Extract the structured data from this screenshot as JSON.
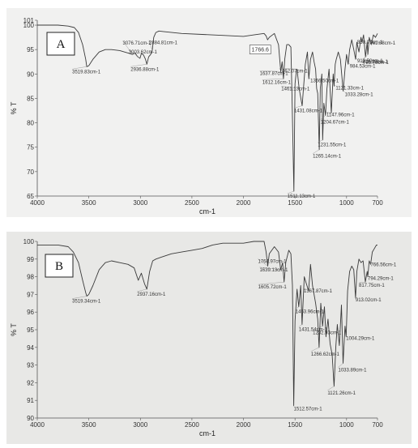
{
  "chart_data": [
    {
      "type": "line",
      "panel_label": "A",
      "xlabel": "cm-1",
      "ylabel": "% T",
      "xlim": [
        4000,
        700
      ],
      "ylim": [
        65,
        101
      ],
      "x_ticks": [
        4000,
        3500,
        3000,
        2500,
        2000,
        1500,
        1000,
        700
      ],
      "y_ticks": [
        101,
        100,
        95,
        90,
        85,
        80,
        75,
        70,
        65
      ],
      "boxed_label": "1766.6",
      "series": [
        {
          "x": [
            4000,
            3900,
            3800,
            3700,
            3640,
            3600,
            3560,
            3530,
            3519.83,
            3500,
            3460,
            3400,
            3340,
            3280,
            3200,
            3120,
            3076.71,
            3050,
            3030,
            3003.62,
            2990,
            2970,
            2950,
            2936.88,
            2920,
            2900,
            2884.81,
            2870,
            2850,
            2820,
            2780,
            2600,
            2400,
            2200,
            2000,
            1900,
            1800,
            1780,
            1766.6,
            1750,
            1700,
            1660,
            1637.87,
            1625,
            1612.16,
            1600,
            1580,
            1560,
            1540,
            1530,
            1511.13,
            1500,
            1490,
            1480,
            1470,
            1460,
            1431.08,
            1400,
            1380,
            1366.5,
            1350,
            1330,
            1315,
            1300,
            1290,
            1280,
            1265.14,
            1255,
            1250,
            1240,
            1231.55,
            1220,
            1204.67,
            1190,
            1170,
            1147.96,
            1130,
            1121.33,
            1110,
            1100,
            1080,
            1060,
            1033.28,
            1015,
            1000,
            984.53,
            970,
            950,
            930,
            912.5,
            900,
            880,
            860,
            850,
            835,
            816.32,
            800,
            793.78,
            780,
            760,
            740,
            720,
            700
          ],
          "y": [
            100,
            100,
            100,
            99.8,
            99.5,
            98.5,
            96,
            93,
            91.5,
            91.7,
            93,
            94.5,
            95,
            95,
            94.8,
            94.3,
            94,
            94.3,
            93.6,
            93.2,
            94.2,
            93.9,
            93,
            92,
            93.5,
            94,
            94.8,
            97.5,
            98.5,
            98.8,
            98.7,
            98.3,
            98.1,
            97.9,
            97.7,
            98,
            98.3,
            97.8,
            97,
            97.5,
            98.3,
            96,
            90.5,
            92.5,
            89,
            93,
            96,
            96,
            95.5,
            86,
            66,
            88,
            90,
            91,
            89,
            87,
            83.5,
            92,
            94.5,
            89,
            93,
            94.5,
            92.5,
            91,
            87,
            86,
            74.5,
            87,
            88,
            90,
            76.5,
            84,
            81.5,
            87,
            91,
            82,
            90,
            87.5,
            92,
            93,
            94.5,
            93,
            86.5,
            91,
            94,
            92,
            95,
            97,
            95,
            93,
            96.5,
            94.5,
            97.5,
            96.5,
            98,
            93.5,
            96.5,
            94,
            97.5,
            96,
            98,
            97.5,
            98.3
          ]
        }
      ],
      "annotations": [
        {
          "x": 3519.83,
          "y": 91.5,
          "label": "3519.83cm-1"
        },
        {
          "x": 3076.71,
          "y": 94,
          "label": "3076.71cm-1"
        },
        {
          "x": 3003.62,
          "y": 93.2,
          "label": "3003.62cm-1"
        },
        {
          "x": 2884.81,
          "y": 94.8,
          "label": "2884.81cm-1"
        },
        {
          "x": 2936.88,
          "y": 92,
          "label": "2936.88cm-1"
        },
        {
          "x": 1637.87,
          "y": 90.5,
          "label": "1637.87cm-1"
        },
        {
          "x": 1612.16,
          "y": 89,
          "label": "1612.16cm-1"
        },
        {
          "x": 1366.5,
          "y": 89,
          "label": "1366.50cm-1"
        },
        {
          "x": 1460,
          "y": 87,
          "label": "1461.13cm-1"
        },
        {
          "x": 1480,
          "y": 91,
          "label": "1462.07cm-1"
        },
        {
          "x": 1431.08,
          "y": 83.5,
          "label": "1431.08cm-1"
        },
        {
          "x": 1511.13,
          "y": 66,
          "label": "1511.13cm-1"
        },
        {
          "x": 1265.14,
          "y": 74.5,
          "label": "1265.14cm-1"
        },
        {
          "x": 1231.55,
          "y": 76.5,
          "label": "1231.55cm-1"
        },
        {
          "x": 1204.67,
          "y": 81.5,
          "label": "1204.67cm-1"
        },
        {
          "x": 1147.96,
          "y": 82,
          "label": "1147.96cm-1"
        },
        {
          "x": 1121.33,
          "y": 87.5,
          "label": "1121.33cm-1"
        },
        {
          "x": 1033.28,
          "y": 86.5,
          "label": "1033.28cm-1"
        },
        {
          "x": 984.53,
          "y": 92,
          "label": "984.53cm-1"
        },
        {
          "x": 912.5,
          "y": 93,
          "label": "912.50cm-1"
        },
        {
          "x": 850,
          "y": 96.5,
          "label": "850.97cm-1"
        },
        {
          "x": 816.32,
          "y": 93.5,
          "label": "816.32cm-1"
        },
        {
          "x": 793.78,
          "y": 94,
          "label": "793.78cm-1"
        },
        {
          "x": 760,
          "y": 96,
          "label": "761.88cm-1"
        }
      ]
    },
    {
      "type": "line",
      "panel_label": "B",
      "xlabel": "cm-1",
      "ylabel": "% T",
      "xlim": [
        4000,
        700
      ],
      "ylim": [
        90,
        100
      ],
      "x_ticks": [
        4000,
        3500,
        3000,
        2500,
        2000,
        1500,
        1000,
        700
      ],
      "y_ticks": [
        100,
        99,
        98,
        97,
        96,
        95,
        94,
        93,
        92,
        91,
        90
      ],
      "series": [
        {
          "x": [
            4000,
            3900,
            3800,
            3700,
            3650,
            3600,
            3560,
            3530,
            3519.34,
            3500,
            3460,
            3400,
            3340,
            3280,
            3200,
            3120,
            3060,
            3020,
            2990,
            2960,
            2937.16,
            2910,
            2880,
            2850,
            2800,
            2700,
            2600,
            2500,
            2400,
            2300,
            2200,
            2100,
            2000,
            1900,
            1800,
            1780,
            1764.97,
            1750,
            1700,
            1660,
            1639.13,
            1620,
            1605.72,
            1590,
            1560,
            1540,
            1525,
            1512.57,
            1500,
            1480,
            1463.96,
            1445,
            1431.54,
            1410,
            1390,
            1367.87,
            1350,
            1330,
            1300,
            1280,
            1266.62,
            1250,
            1232.93,
            1215,
            1200,
            1180,
            1160,
            1140,
            1121.26,
            1105,
            1090,
            1070,
            1050,
            1033.89,
            1015,
            1004.29,
            990,
            970,
            950,
            930,
            913.02,
            900,
            880,
            860,
            840,
            817.75,
            800,
            794.29,
            780,
            766.56,
            750,
            730,
            710,
            700
          ],
          "y": [
            99.8,
            99.8,
            99.8,
            99.7,
            99.4,
            98.8,
            97.8,
            97.1,
            96.9,
            97,
            97.5,
            98.4,
            98.8,
            98.9,
            98.8,
            98.7,
            98.5,
            97.8,
            98.2,
            97.6,
            97.3,
            98.3,
            98.9,
            99,
            99.1,
            99.3,
            99.4,
            99.5,
            99.6,
            99.8,
            99.9,
            99.9,
            99.9,
            100,
            100,
            99.4,
            98.6,
            99.3,
            99.7,
            99.4,
            98.4,
            98.8,
            97.7,
            98.8,
            99.5,
            99.3,
            97.5,
            90.7,
            95.5,
            97.3,
            96.3,
            97.5,
            95.3,
            98,
            97.6,
            97.2,
            98.7,
            97.5,
            96.5,
            95.6,
            94,
            96.5,
            95.2,
            96.3,
            94.6,
            95.6,
            94.2,
            93.6,
            91.8,
            94,
            95.3,
            94.1,
            96.4,
            93.1,
            95.2,
            94.6,
            97.2,
            98.3,
            98.6,
            98.4,
            96.8,
            98.3,
            99,
            98.8,
            98.9,
            97.7,
            98.3,
            98,
            98.9,
            98.7,
            99.4,
            99.6,
            99.8,
            99.8
          ]
        }
      ],
      "annotations": [
        {
          "x": 3519.34,
          "y": 96.9,
          "label": "3519.34cm-1"
        },
        {
          "x": 2937.16,
          "y": 97.3,
          "label": "2937.16cm-1"
        },
        {
          "x": 1764.97,
          "y": 98.6,
          "label": "1764.97cm-1"
        },
        {
          "x": 1639.13,
          "y": 98.4,
          "label": "1639.13cm-1"
        },
        {
          "x": 1605.72,
          "y": 97.7,
          "label": "1605.72cm-1"
        },
        {
          "x": 1367.87,
          "y": 97.2,
          "label": "1367.87cm-1"
        },
        {
          "x": 1463.96,
          "y": 96.3,
          "label": "1463.96cm-1"
        },
        {
          "x": 1431.54,
          "y": 95.3,
          "label": "1431.54cm-1"
        },
        {
          "x": 1232.93,
          "y": 95.2,
          "label": "1232.93cm-1"
        },
        {
          "x": 1266.62,
          "y": 94,
          "label": "1266.62cm-1"
        },
        {
          "x": 1512.57,
          "y": 90.7,
          "label": "1512.57cm-1"
        },
        {
          "x": 1121.26,
          "y": 91.8,
          "label": "1121.26cm-1"
        },
        {
          "x": 1033.89,
          "y": 93.1,
          "label": "1033.89cm-1"
        },
        {
          "x": 1004.29,
          "y": 94.6,
          "label": "1004.29cm-1"
        },
        {
          "x": 913.02,
          "y": 96.8,
          "label": "913.02cm-1"
        },
        {
          "x": 817.75,
          "y": 97.7,
          "label": "817.75cm-1"
        },
        {
          "x": 794.29,
          "y": 98,
          "label": "794.29cm-1"
        },
        {
          "x": 766.56,
          "y": 98.7,
          "label": "766.56cm-1"
        }
      ]
    }
  ]
}
